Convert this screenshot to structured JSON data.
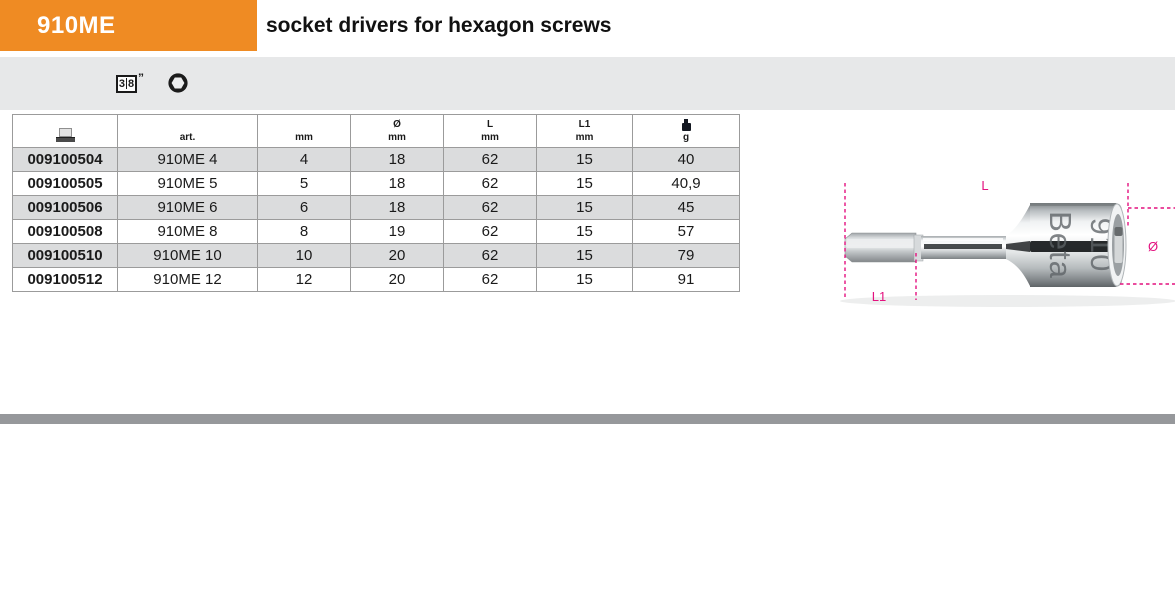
{
  "page": {
    "code": "910ME",
    "title": "socket drivers for hexagon screws"
  },
  "drive": {
    "numerator": "3",
    "denominator": "8",
    "inch_mark": "”",
    "icons": [
      "three-eighths-inch-drive-icon",
      "hexagon-socket-icon"
    ]
  },
  "table": {
    "column_ids": [
      "code",
      "article",
      "size_mm",
      "diameter_mm",
      "length_mm",
      "length1_mm",
      "weight_g"
    ],
    "headers": {
      "code_icon": "socket-pictogram-icon",
      "art": "art.",
      "size": "mm",
      "dia_sym": "Ø",
      "dia_unit": "mm",
      "l_sym": "L",
      "l_unit": "mm",
      "l1_sym": "L1",
      "l1_unit": "mm",
      "weight_icon": "weight-icon",
      "weight_unit": "g"
    },
    "rows": [
      [
        "009100504",
        "910ME 4",
        "4",
        "18",
        "62",
        "15",
        "40"
      ],
      [
        "009100505",
        "910ME 5",
        "5",
        "18",
        "62",
        "15",
        "40,9"
      ],
      [
        "009100506",
        "910ME 6",
        "6",
        "18",
        "62",
        "15",
        "45"
      ],
      [
        "009100508",
        "910ME 8",
        "8",
        "19",
        "62",
        "15",
        "57"
      ],
      [
        "009100510",
        "910ME 10",
        "10",
        "20",
        "62",
        "15",
        "79"
      ],
      [
        "009100512",
        "910ME 12",
        "12",
        "20",
        "62",
        "15",
        "91"
      ]
    ]
  },
  "figure": {
    "dim_l": "L",
    "dim_l1": "L1",
    "dim_diameter": "Ø",
    "engraving_1": "Beta",
    "engraving_2": "910"
  },
  "colors": {
    "accent_orange": "#EF8B23",
    "strip_gray": "#E7E8E9",
    "table_border": "#9B9B9B",
    "row_shade": "#DBDCDD",
    "cell_text": "#1A1A1A",
    "divider_gray": "#96989B",
    "magenta": "#E3117F"
  }
}
